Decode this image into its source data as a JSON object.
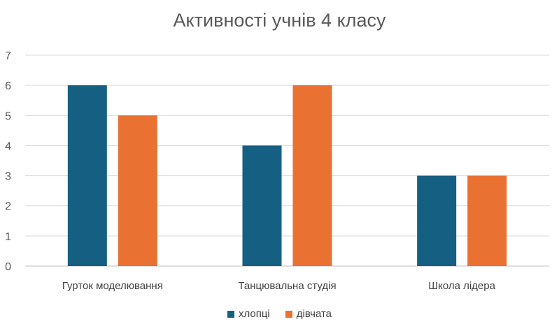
{
  "chart_data": {
    "type": "bar",
    "title": "Активності учнів 4 класу",
    "categories": [
      "Гурток моделювання",
      "Танцювальна студія",
      "Школа лідера"
    ],
    "series": [
      {
        "name": "хлопці",
        "values": [
          6,
          4,
          3
        ],
        "color": "#156082"
      },
      {
        "name": "дівчата",
        "values": [
          5,
          6,
          3
        ],
        "color": "#E97132"
      }
    ],
    "ylim": [
      0,
      7
    ],
    "yticks": [
      0,
      1,
      2,
      3,
      4,
      5,
      6,
      7
    ],
    "grid": true,
    "legend": "bottom"
  }
}
